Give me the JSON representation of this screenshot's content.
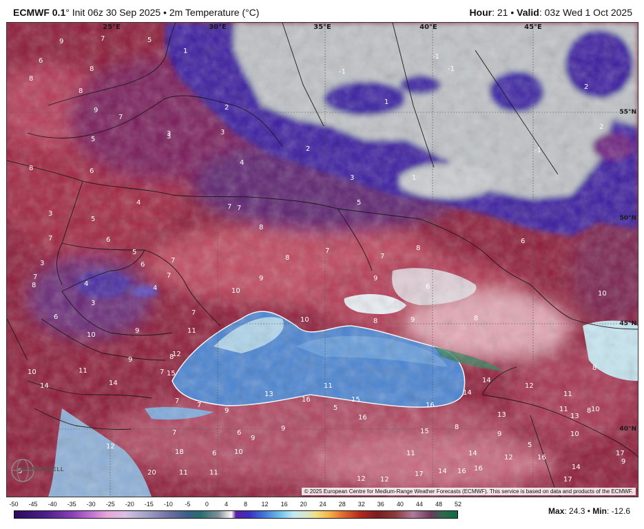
{
  "header": {
    "model": "ECMWF 0.1",
    "degree": "°",
    "init": " Init 06z 30 Sep 2025 • 2m Temperature (°C)",
    "hour_label": "Hour",
    "hour_value": ": 21 •",
    "valid_label": "Valid",
    "valid_value": ": 03z Wed 1 Oct 2025"
  },
  "map": {
    "lon_labels": [
      "25°E",
      "30°E",
      "35°E",
      "40°E",
      "45°E"
    ],
    "lat_labels": [
      "55°N",
      "50°N",
      "45°N",
      "40°N"
    ],
    "values": [
      "9",
      "7",
      "5",
      "1",
      "6",
      "8",
      "8",
      "8",
      "9",
      "7",
      "2",
      "3",
      "3",
      "3",
      "-1",
      "-1",
      "-1",
      "1",
      "2",
      "2",
      "4",
      "8",
      "6",
      "5",
      "4",
      "2",
      "3",
      "1",
      "-1",
      "5",
      "7",
      "7",
      "5",
      "3",
      "7",
      "6",
      "5",
      "6",
      "7",
      "7",
      "8",
      "8",
      "7",
      "7",
      "8",
      "6",
      "4",
      "4",
      "3",
      "3",
      "6",
      "8",
      "7",
      "10",
      "9",
      "9",
      "10",
      "8",
      "6",
      "9",
      "10",
      "8",
      "10",
      "9",
      "7",
      "11",
      "8",
      "9",
      "12",
      "7",
      "10",
      "11",
      "14",
      "14",
      "15",
      "13",
      "11",
      "15",
      "16",
      "14",
      "14",
      "12",
      "11",
      "8",
      "13",
      "10",
      "16",
      "5",
      "15",
      "13",
      "11",
      "8",
      "7",
      "7",
      "9",
      "6",
      "9",
      "9",
      "16",
      "8",
      "9",
      "5",
      "10",
      "7",
      "6",
      "5",
      "12",
      "20",
      "18",
      "11",
      "11",
      "10",
      "11",
      "17",
      "14",
      "12",
      "16",
      "17",
      "16",
      "14",
      "16",
      "12",
      "12",
      "9",
      "17",
      "14"
    ],
    "copyright": "© 2025 European Centre for Medium-Range Weather Forecasts (ECMWF). This service is based on data and products of the ECMWF.",
    "logo_text": "WEATHERBELL"
  },
  "colorbar": {
    "ticks": [
      "-50",
      "-45",
      "-40",
      "-35",
      "-30",
      "-25",
      "-20",
      "-15",
      "-10",
      "-5",
      "0",
      "4",
      "8",
      "12",
      "16",
      "20",
      "24",
      "28",
      "32",
      "36",
      "40",
      "44",
      "48",
      "52"
    ],
    "max_label": "Max",
    "max_value": ": 24.3 •",
    "min_label": "Min",
    "min_value": ": -12.6"
  },
  "colors": {
    "warm_red": "#8f1d3a",
    "land_pink": "#e6a9b6",
    "cold_purple": "#3a1f9e",
    "near_zero_gray": "#c9ccce",
    "sea_blue": "#4f86d4",
    "sea_light": "#bfe3f1",
    "green_high": "#2f7a55"
  }
}
